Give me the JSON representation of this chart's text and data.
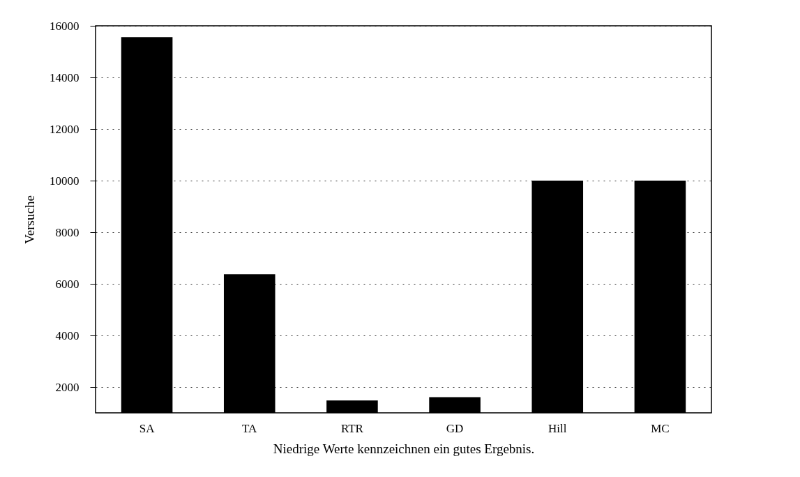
{
  "chart_data": {
    "type": "bar",
    "xlabel": "Niedrige Werte kennzeichnen ein gutes Ergebnis.",
    "ylabel": "Versuche",
    "categories": [
      "SA",
      "TA",
      "RTR",
      "GD",
      "Hill",
      "MC"
    ],
    "values": [
      15560,
      6370,
      1480,
      1610,
      10000,
      10000
    ],
    "color": "#000000",
    "ylim": [
      1000,
      16000
    ],
    "yticks": [
      2000,
      4000,
      6000,
      8000,
      10000,
      12000,
      14000,
      16000
    ],
    "grid": "y"
  }
}
